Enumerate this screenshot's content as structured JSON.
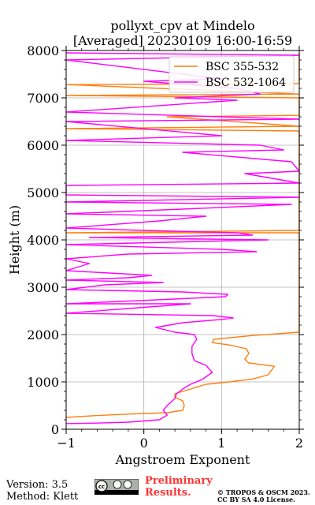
{
  "chart_data": {
    "type": "line",
    "title": "pollyxt_cpv at Mindelo",
    "subtitle": "[Averaged] 20230109 16:00-16:59",
    "xlabel": "Angstroem Exponent",
    "ylabel": "Height (m)",
    "xlim": [
      -1,
      2
    ],
    "ylim": [
      0,
      8000
    ],
    "xticks": [
      "−1",
      "0",
      "1",
      "2"
    ],
    "yticks": [
      "0",
      "1000",
      "2000",
      "3000",
      "4000",
      "5000",
      "6000",
      "7000",
      "8000"
    ],
    "grid": true,
    "legend_position": "top-right",
    "series": [
      {
        "name": "BSC 355-532",
        "color": "#ff7f0e",
        "points": [
          [
            -1.0,
            250
          ],
          [
            -0.6,
            290
          ],
          [
            -0.2,
            320
          ],
          [
            0.3,
            350
          ],
          [
            0.5,
            400
          ],
          [
            0.52,
            500
          ],
          [
            0.5,
            600
          ],
          [
            0.4,
            680
          ],
          [
            0.4,
            750
          ],
          [
            0.6,
            850
          ],
          [
            0.8,
            950
          ],
          [
            1.1,
            1000
          ],
          [
            1.4,
            1060
          ],
          [
            1.6,
            1150
          ],
          [
            1.68,
            1330
          ],
          [
            1.35,
            1400
          ],
          [
            1.3,
            1480
          ],
          [
            1.35,
            1600
          ],
          [
            1.32,
            1700
          ],
          [
            1.1,
            1780
          ],
          [
            0.88,
            1830
          ],
          [
            0.9,
            1900
          ],
          [
            1.4,
            1980
          ],
          [
            2.0,
            2050
          ],
          [
            2.0,
            4150
          ],
          [
            -1.0,
            4150
          ],
          [
            2.0,
            4200
          ],
          [
            2.0,
            6300
          ],
          [
            -1.0,
            6350
          ],
          [
            2.0,
            6400
          ],
          [
            0.3,
            6600
          ],
          [
            2.0,
            6630
          ],
          [
            2.0,
            7000
          ],
          [
            -1.0,
            7050
          ],
          [
            2.0,
            7080
          ],
          [
            -1.0,
            7280
          ],
          [
            2.0,
            7300
          ],
          [
            2.0,
            7950
          ]
        ]
      },
      {
        "name": "BSC 532-1064",
        "color": "#ff00ff",
        "points": [
          [
            -1.0,
            120
          ],
          [
            -0.6,
            130
          ],
          [
            -0.2,
            150
          ],
          [
            0.2,
            200
          ],
          [
            0.3,
            300
          ],
          [
            0.25,
            400
          ],
          [
            0.3,
            500
          ],
          [
            0.4,
            650
          ],
          [
            0.42,
            750
          ],
          [
            0.5,
            850
          ],
          [
            0.6,
            950
          ],
          [
            0.75,
            1050
          ],
          [
            0.88,
            1200
          ],
          [
            0.8,
            1350
          ],
          [
            0.65,
            1450
          ],
          [
            0.62,
            1600
          ],
          [
            0.62,
            1750
          ],
          [
            0.68,
            1900
          ],
          [
            0.65,
            2000
          ],
          [
            0.4,
            2050
          ],
          [
            0.15,
            2150
          ],
          [
            0.5,
            2250
          ],
          [
            1.0,
            2320
          ],
          [
            1.15,
            2350
          ],
          [
            0.9,
            2400
          ],
          [
            -1.0,
            2450
          ],
          [
            -0.2,
            2550
          ],
          [
            0.6,
            2650
          ],
          [
            -1.0,
            2650
          ],
          [
            0.4,
            2750
          ],
          [
            1.05,
            2800
          ],
          [
            1.08,
            2850
          ],
          [
            0.5,
            2900
          ],
          [
            -1.0,
            2950
          ],
          [
            -0.5,
            3050
          ],
          [
            0.25,
            3100
          ],
          [
            -1.0,
            3150
          ],
          [
            -0.2,
            3200
          ],
          [
            0.1,
            3250
          ],
          [
            -1.0,
            3350
          ],
          [
            -0.7,
            3500
          ],
          [
            -1.0,
            3600
          ],
          [
            -0.2,
            3700
          ],
          [
            1.45,
            3750
          ],
          [
            1.0,
            3800
          ],
          [
            -1.0,
            3900
          ],
          [
            0.3,
            3950
          ],
          [
            1.6,
            4000
          ],
          [
            -0.7,
            4050
          ],
          [
            1.4,
            4100
          ],
          [
            1.2,
            4150
          ],
          [
            0.0,
            4200
          ],
          [
            -1.0,
            4250
          ],
          [
            0.2,
            4400
          ],
          [
            0.8,
            4500
          ],
          [
            -1.0,
            4550
          ],
          [
            0.5,
            4650
          ],
          [
            1.9,
            4750
          ],
          [
            -1.0,
            4800
          ],
          [
            2.0,
            4900
          ],
          [
            -1.0,
            4950
          ],
          [
            -1.0,
            5150
          ],
          [
            2.0,
            5200
          ],
          [
            1.3,
            5400
          ],
          [
            2.0,
            5450
          ],
          [
            1.9,
            5650
          ],
          [
            0.5,
            5850
          ],
          [
            1.8,
            5900
          ],
          [
            1.5,
            6000
          ],
          [
            -1.0,
            6100
          ],
          [
            1.0,
            6200
          ],
          [
            -1.0,
            6500
          ],
          [
            2.0,
            6550
          ],
          [
            -1.0,
            6700
          ],
          [
            1.2,
            6950
          ],
          [
            0.4,
            7000
          ],
          [
            1.5,
            7080
          ],
          [
            1.2,
            7200
          ],
          [
            0.0,
            7350
          ],
          [
            1.0,
            7400
          ],
          [
            -1.0,
            7800
          ],
          [
            2.0,
            7900
          ],
          [
            -1.0,
            7950
          ]
        ]
      }
    ]
  },
  "footer": {
    "version": "Version: 3.5",
    "method": "Method: Klett",
    "preliminary_line1": "Preliminary",
    "preliminary_line2": "Results.",
    "copyright_line1": "© TROPOS & OSCM 2023.",
    "copyright_line2": "CC BY SA 4.0 License.",
    "license_badge_text": "cc"
  }
}
